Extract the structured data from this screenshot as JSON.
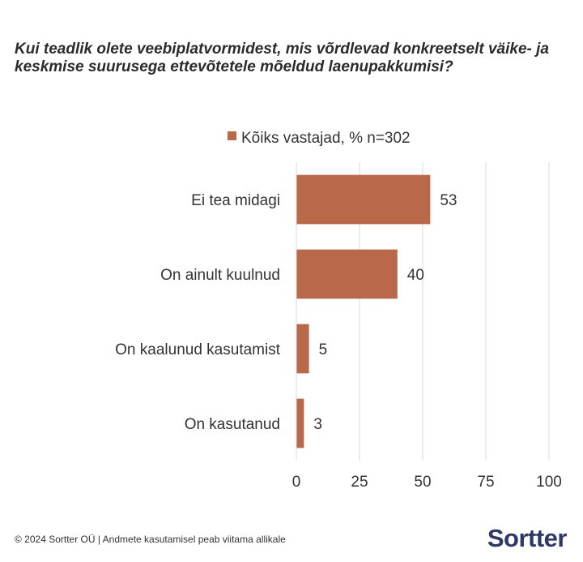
{
  "chart_data": {
    "type": "bar",
    "orientation": "horizontal",
    "title": "Kui teadlik olete veebiplatvormidest, mis võrdlevad konkreetselt väike- ja keskmise suurusega ettevõtetele mõeldud laenupakkumisi?",
    "categories": [
      "Ei tea midagi",
      "On ainult kuulnud",
      "On kaalunud kasutamist",
      "On kasutanud"
    ],
    "series": [
      {
        "name": "Kõiks vastajad,  % n=302",
        "values": [
          53,
          40,
          5,
          3
        ],
        "color": "#b9694a"
      }
    ],
    "xlim": [
      0,
      100
    ],
    "xticks": [
      0,
      25,
      50,
      75,
      100
    ],
    "grid": true,
    "legend": "top"
  },
  "footer": {
    "copyright": "© 2024 Sortter OÜ | Andmete kasutamisel peab viitama allikale"
  },
  "logo": {
    "text": "Sortter"
  }
}
